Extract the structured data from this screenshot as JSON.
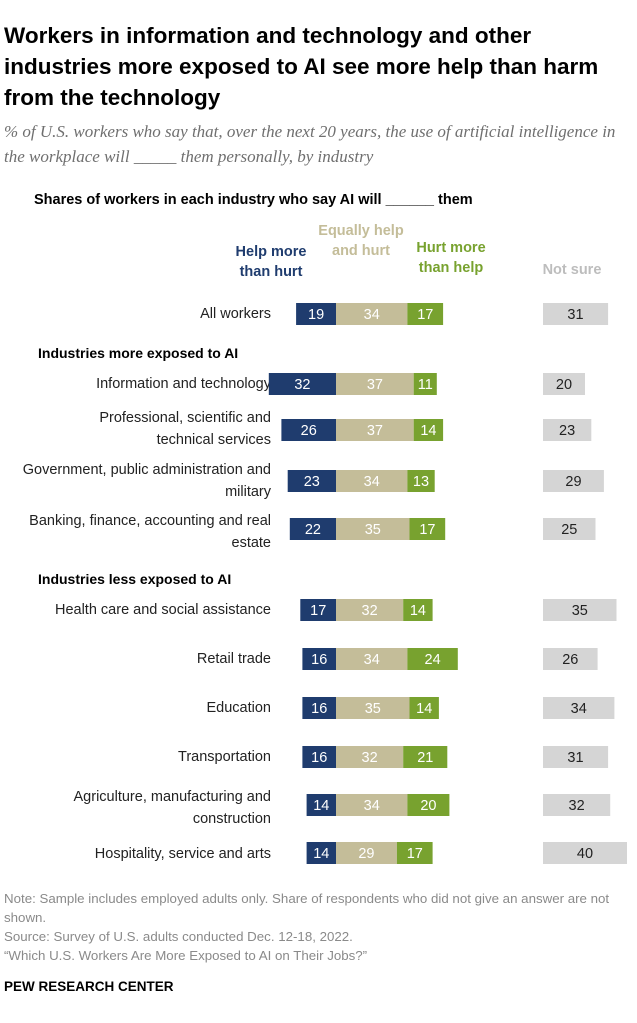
{
  "title": "Workers in information and technology and other industries more exposed to AI see more help than harm from the technology",
  "subtitle": "% of U.S. workers who say that, over the next 20 years, the use of artificial intelligence in the workplace will _____ them personally, by industry",
  "chart_heading": "Shares of workers in each industry who say AI will ______ them",
  "sections": {
    "more": "Industries more exposed to AI",
    "less": "Industries less exposed to AI"
  },
  "colors": {
    "help": "#1f3c6e",
    "equal": "#c4bd99",
    "hurt": "#78a22f",
    "not_sure": "#d5d5d5"
  },
  "chart_data": {
    "type": "bar",
    "orientation": "horizontal-stacked",
    "title": "Shares of workers in each industry who say AI will ______ them",
    "series": [
      {
        "name": "Help more than hurt",
        "values": [
          19,
          32,
          26,
          23,
          22,
          17,
          16,
          16,
          16,
          14,
          14
        ]
      },
      {
        "name": "Equally help and hurt",
        "values": [
          34,
          37,
          37,
          34,
          35,
          32,
          34,
          35,
          32,
          34,
          29
        ]
      },
      {
        "name": "Hurt more than help",
        "values": [
          17,
          11,
          14,
          13,
          17,
          14,
          24,
          14,
          21,
          20,
          17
        ]
      },
      {
        "name": "Not sure",
        "values": [
          31,
          20,
          23,
          29,
          25,
          35,
          26,
          34,
          31,
          32,
          40
        ]
      }
    ],
    "categories": [
      "All workers",
      "Information and technology",
      "Professional, scientific and technical services",
      "Government, public administration and military",
      "Banking, finance, accounting and real estate",
      "Health care and social assistance",
      "Retail trade",
      "Education",
      "Transportation",
      "Agriculture, manufacturing and construction",
      "Hospitality, service and arts"
    ],
    "legend": {
      "help": "Help more than hurt",
      "equal": "Equally help and hurt",
      "hurt": "Hurt more than help",
      "not_sure": "Not sure"
    },
    "xlim": [
      0,
      100
    ]
  },
  "footnote": {
    "note": "Note: Sample includes employed adults only. Share of respondents who did not give an answer are not shown.",
    "source": "Source: Survey of U.S. adults conducted Dec. 12-18, 2022.",
    "report": "“Which U.S. Workers Are More Exposed to AI on Their Jobs?”"
  },
  "brand": "PEW RESEARCH CENTER"
}
